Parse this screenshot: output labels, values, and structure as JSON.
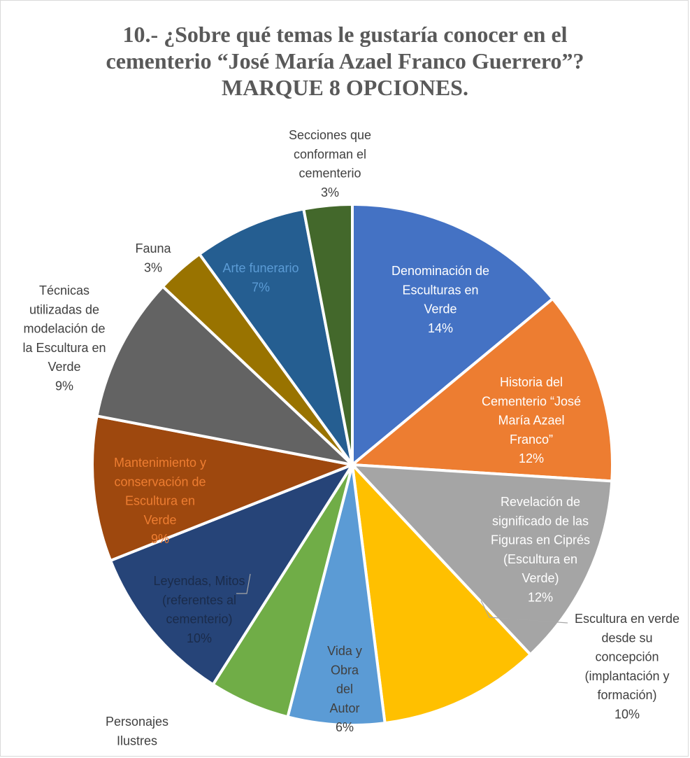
{
  "chart_data": {
    "type": "pie",
    "title": "10.- ¿Sobre qué temas le gustaría conocer en el\ncementerio “José María Azael Franco Guerrero”?\nMARQUE 8 OPCIONES.",
    "slices": [
      {
        "label": "Denominación de Esculturas en Verde",
        "value": 14,
        "percent_label": "14%",
        "color": "#4472c4",
        "text_color": "#ffffff"
      },
      {
        "label": "Historia del Cementerio “José María Azael Franco”",
        "value": 12,
        "percent_label": "12%",
        "color": "#ed7d31",
        "text_color": "#ffffff"
      },
      {
        "label": "Revelación de significado de las Figuras en Ciprés (Escultura en Verde)",
        "value": 12,
        "percent_label": "12%",
        "color": "#a5a5a5",
        "text_color": "#ffffff"
      },
      {
        "label": "Escultura en verde desde su concepción (implantación y formación)",
        "value": 10,
        "percent_label": "10%",
        "color": "#ffc000",
        "text_color": "#404040"
      },
      {
        "label": "Vida y Obra del Autor",
        "value": 6,
        "percent_label": "6%",
        "color": "#5b9bd5",
        "text_color": "#404040"
      },
      {
        "label": "Personajes Ilustres",
        "value": 5,
        "percent_label": "",
        "color": "#70ad47",
        "text_color": "#404040"
      },
      {
        "label": "Leyendas, Mitos (referentes al cementerio)",
        "value": 10,
        "percent_label": "10%",
        "color": "#264478",
        "text_color": "#1a2b4a"
      },
      {
        "label": "Mantenimiento y conservación de Escultura en Verde",
        "value": 9,
        "percent_label": "9%",
        "color": "#9e480e",
        "text_color": "#ed7d31"
      },
      {
        "label": "Técnicas utilizadas de modelación de la Escultura en Verde",
        "value": 9,
        "percent_label": "9%",
        "color": "#636363",
        "text_color": "#404040"
      },
      {
        "label": "Fauna",
        "value": 3,
        "percent_label": "3%",
        "color": "#997300",
        "text_color": "#404040"
      },
      {
        "label": "Arte funerario",
        "value": 7,
        "percent_label": "7%",
        "color": "#255e91",
        "text_color": "#5b9bd5"
      },
      {
        "label": "Secciones que conforman el cementerio",
        "value": 3,
        "percent_label": "3%",
        "color": "#43682b",
        "text_color": "#404040"
      }
    ]
  }
}
